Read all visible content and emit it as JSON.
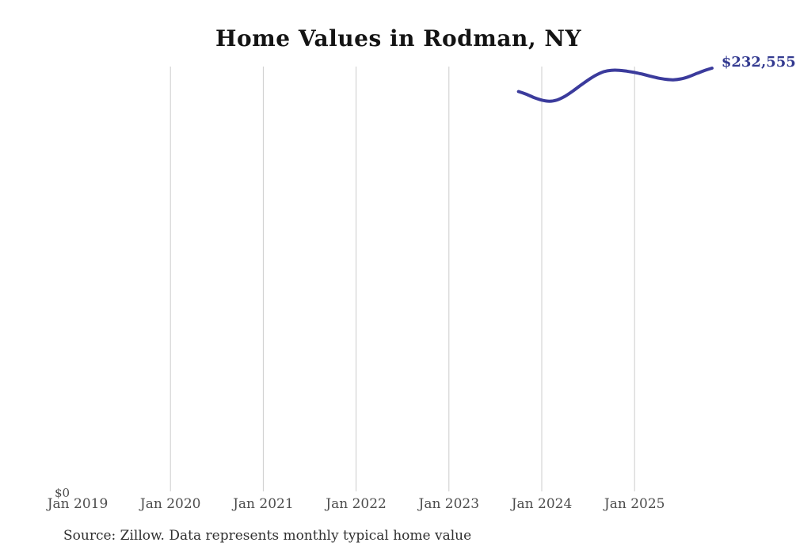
{
  "page": {
    "title": "Home Values in Rodman, NY",
    "source_note": "Source: Zillow. Data represents monthly typical home value"
  },
  "chart_data": {
    "type": "line",
    "title": "Home Values in Rodman, NY",
    "subtitle": "",
    "xlabel": "",
    "ylabel": "",
    "legend_position": "none",
    "grid": "vertical-only",
    "latest_value_label": "$232,555",
    "y_axis": {
      "zero_label": "$0",
      "min": 0,
      "max_visible_value": 232555
    },
    "x_ticks": [
      {
        "label": "Jan 2019",
        "gridline": false
      },
      {
        "label": "Jan 2020",
        "gridline": true
      },
      {
        "label": "Jan 2021",
        "gridline": true
      },
      {
        "label": "Jan 2022",
        "gridline": true
      },
      {
        "label": "Jan 2023",
        "gridline": true
      },
      {
        "label": "Jan 2024",
        "gridline": true
      },
      {
        "label": "Jan 2025",
        "gridline": true
      }
    ],
    "series": [
      {
        "name": "Monthly typical home value",
        "x": [
          "2023-10",
          "2023-11",
          "2023-12",
          "2024-01",
          "2024-02",
          "2024-03",
          "2024-04",
          "2024-05",
          "2024-06",
          "2024-07",
          "2024-08",
          "2024-09",
          "2024-10",
          "2024-11",
          "2024-12",
          "2025-01",
          "2025-02",
          "2025-03",
          "2025-04",
          "2025-05",
          "2025-06",
          "2025-07",
          "2025-08",
          "2025-09",
          "2025-10",
          "2025-11"
        ],
        "values": [
          219800,
          218300,
          216500,
          215100,
          214500,
          215200,
          217200,
          220000,
          223100,
          226100,
          228700,
          230600,
          231400,
          231400,
          230900,
          230200,
          229300,
          228200,
          227200,
          226500,
          226200,
          226700,
          227900,
          229600,
          231200,
          232555
        ]
      }
    ],
    "colors": {
      "line": "#3b3b9c",
      "value_label": "#333a90",
      "gridline": "#cccccc",
      "tick_text": "#4d4d4d",
      "title": "#141414",
      "source": "#303030",
      "background": "#ffffff"
    }
  }
}
